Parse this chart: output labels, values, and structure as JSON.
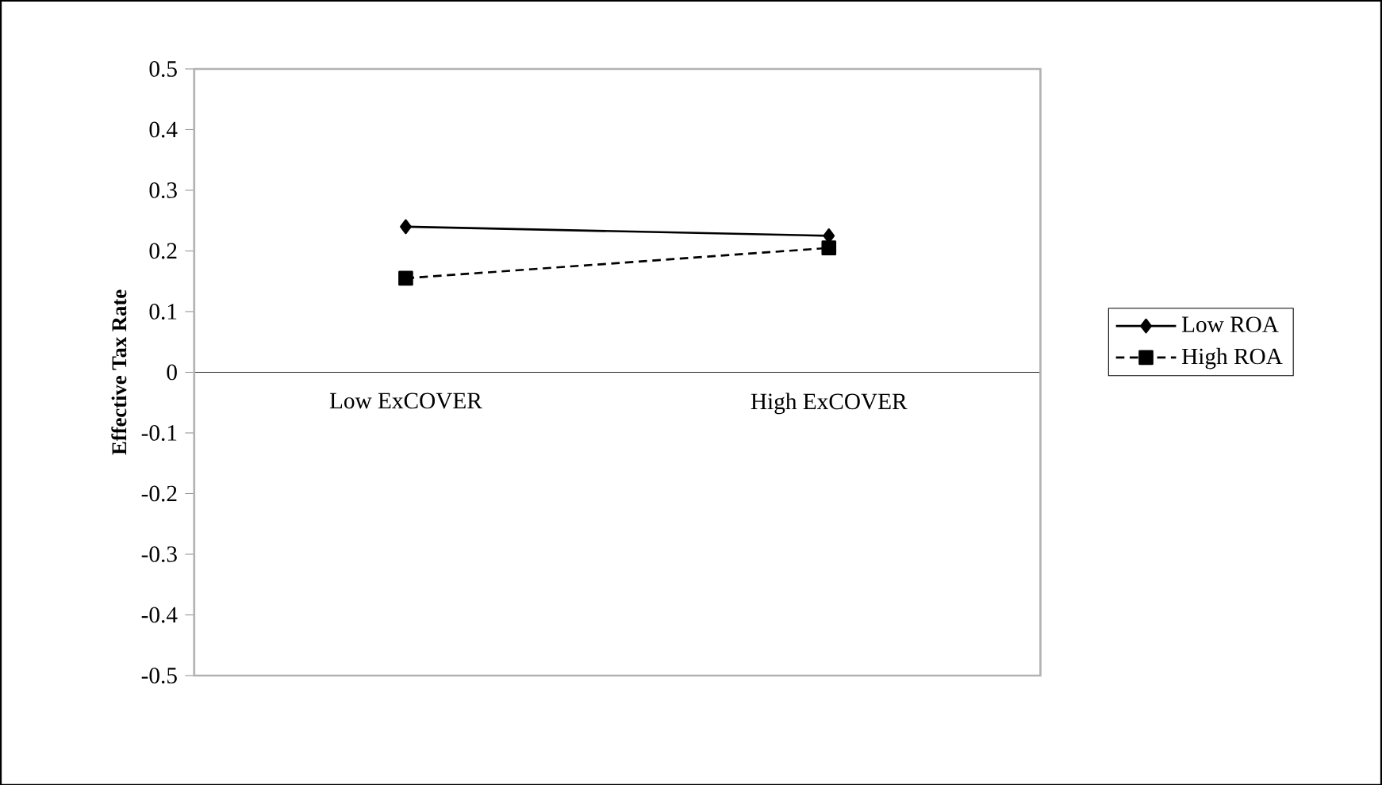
{
  "chart_data": {
    "type": "line",
    "ylabel": "Effective Tax Rate",
    "categories": [
      "Low ExCOVER",
      "High ExCOVER"
    ],
    "series": [
      {
        "name": "Low ROA",
        "color": "#000000",
        "marker": "diamond",
        "line_style": "solid",
        "values": [
          0.24,
          0.225
        ]
      },
      {
        "name": "High ROA",
        "color": "#000000",
        "marker": "square",
        "line_style": "dashed",
        "values": [
          0.155,
          0.205
        ]
      }
    ],
    "ylim": [
      -0.5,
      0.5
    ],
    "yticks": [
      -0.5,
      -0.4,
      -0.3,
      -0.2,
      -0.1,
      0,
      0.1,
      0.2,
      0.3,
      0.4,
      0.5
    ],
    "legend": "right",
    "grid": false
  }
}
